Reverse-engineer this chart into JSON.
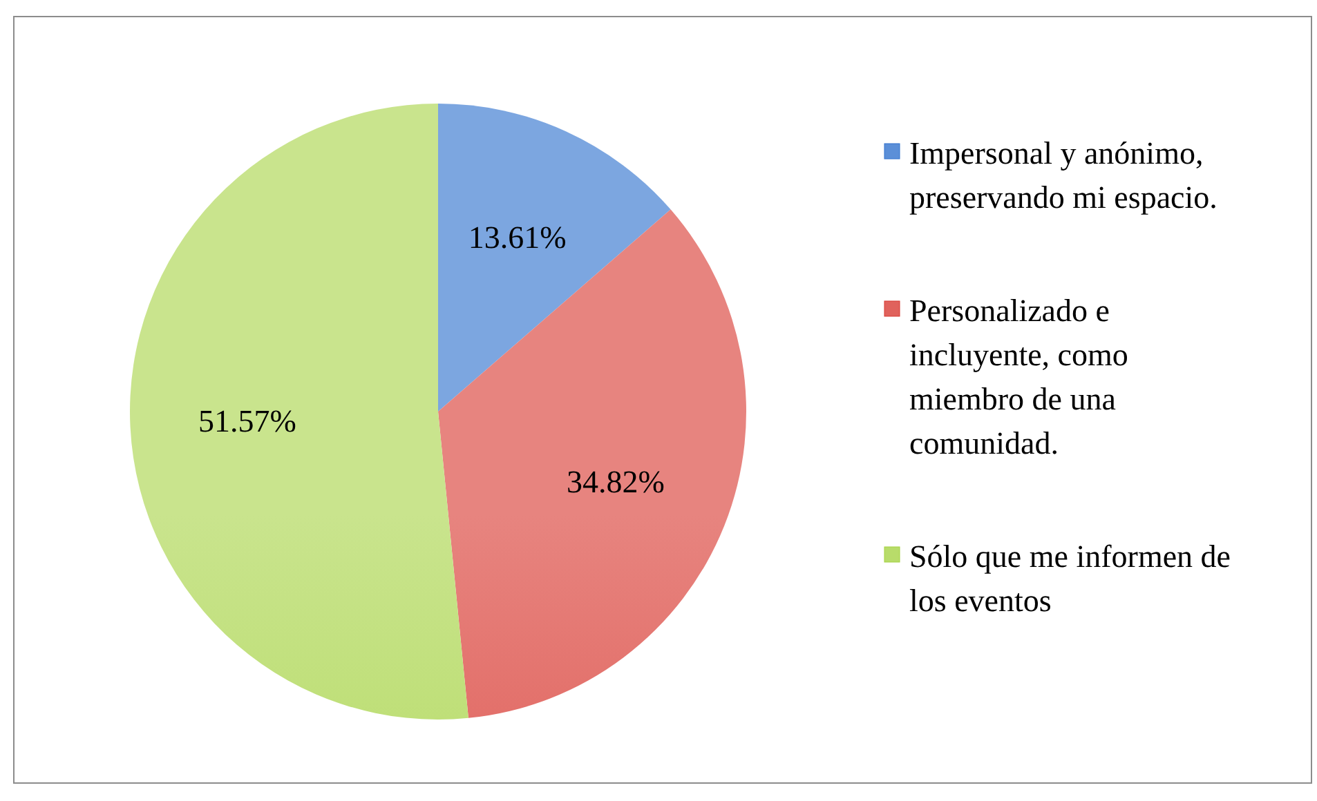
{
  "chart_data": {
    "type": "pie",
    "categories": [
      "Impersonal y anónimo, preservando mi espacio.",
      "Personalizado e incluyente, como miembro de una comunidad.",
      "Sólo que me informen de los eventos"
    ],
    "values": [
      13.61,
      34.82,
      51.57
    ],
    "colors": [
      "#5b8fd8",
      "#e0625c",
      "#b8dc6a"
    ],
    "value_labels": [
      "13.61%",
      "34.82%",
      "51.57%"
    ],
    "legend": "right"
  }
}
